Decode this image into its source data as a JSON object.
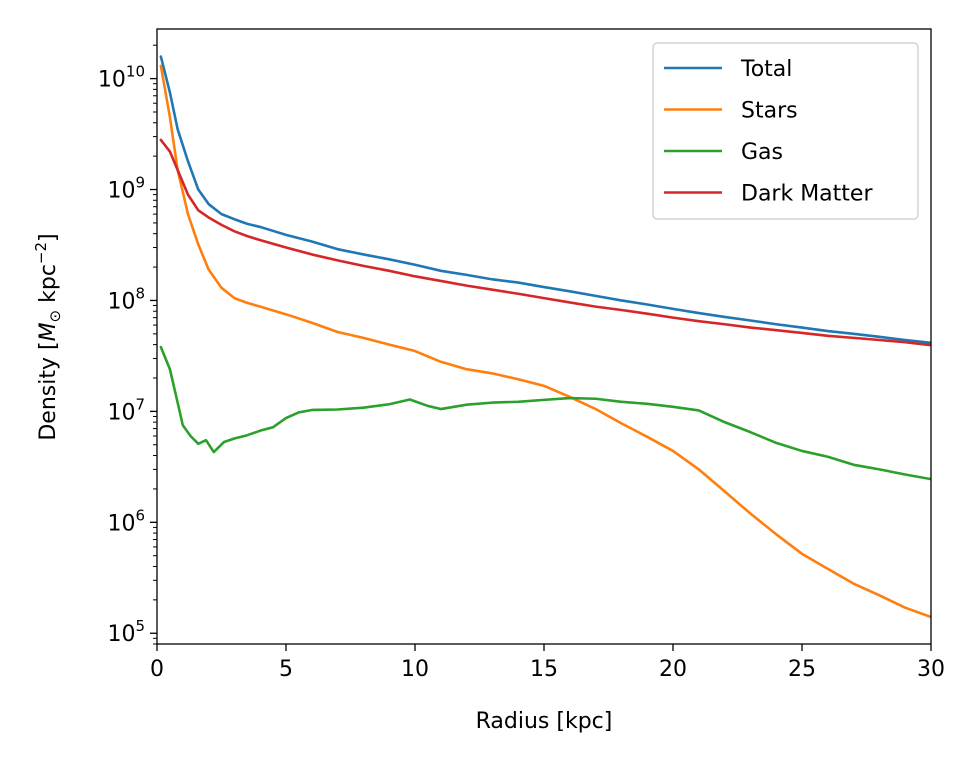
{
  "chart_data": {
    "type": "line",
    "xlabel": "Radius [kpc]",
    "ylabel_parts": [
      "Density [",
      "M",
      "⊙",
      " kpc",
      "−2",
      "]"
    ],
    "xlim": [
      0,
      30
    ],
    "ylim": [
      80000,
      28000000000
    ],
    "yscale": "log",
    "grid": false,
    "legend_position": "top-right",
    "x_ticks": [
      0,
      5,
      10,
      15,
      20,
      25,
      30
    ],
    "x_tick_labels": [
      "0",
      "5",
      "10",
      "15",
      "20",
      "25",
      "30"
    ],
    "y_ticks": [
      100000,
      1000000,
      10000000,
      100000000,
      1000000000,
      10000000000
    ],
    "y_tick_labels": [
      {
        "base": "10",
        "exp": "5"
      },
      {
        "base": "10",
        "exp": "6"
      },
      {
        "base": "10",
        "exp": "7"
      },
      {
        "base": "10",
        "exp": "8"
      },
      {
        "base": "10",
        "exp": "9"
      },
      {
        "base": "10",
        "exp": "10"
      }
    ],
    "series": [
      {
        "name": "Total",
        "color": "#1f77b4",
        "x": [
          0.15,
          0.5,
          0.8,
          1.2,
          1.6,
          2.0,
          2.5,
          3.0,
          3.5,
          4.0,
          5.0,
          6.0,
          7.0,
          8.0,
          9.0,
          10.0,
          11.0,
          12.0,
          13.0,
          14.0,
          15.0,
          16.0,
          17.0,
          18.0,
          19.0,
          20.0,
          21.0,
          22.0,
          23.0,
          24.0,
          25.0,
          26.0,
          27.0,
          28.0,
          29.0,
          30.0
        ],
        "y": [
          15800000000,
          7500000000,
          3500000000,
          1800000000,
          1000000000,
          740000000,
          600000000,
          540000000,
          490000000,
          460000000,
          390000000,
          340000000,
          290000000,
          260000000,
          235000000,
          210000000,
          185000000,
          170000000,
          155000000,
          145000000,
          132000000,
          121000000,
          110000000,
          100000000,
          92000000,
          84000000,
          77000000,
          71000000,
          66000000,
          61000000,
          57000000,
          53000000,
          50000000,
          47000000,
          44000000,
          41500000
        ]
      },
      {
        "name": "Stars",
        "color": "#ff7f0e",
        "x": [
          0.15,
          0.5,
          0.8,
          1.2,
          1.6,
          2.0,
          2.5,
          3.0,
          3.5,
          4.0,
          5.0,
          6.0,
          7.0,
          8.0,
          9.0,
          10.0,
          11.0,
          12.0,
          13.0,
          14.0,
          15.0,
          16.0,
          17.0,
          18.0,
          19.0,
          20.0,
          21.0,
          22.0,
          23.0,
          24.0,
          25.0,
          26.0,
          27.0,
          28.0,
          29.0,
          30.0
        ],
        "y": [
          13000000000,
          4500000000,
          1500000000,
          600000000,
          320000000,
          190000000,
          130000000,
          105000000,
          95000000,
          88000000,
          75000000,
          63000000,
          52000000,
          46000000,
          40000000,
          35000000,
          28000000,
          24000000,
          22000000,
          19500000,
          17000000,
          13500000,
          10500000,
          7800000,
          5900000,
          4400000,
          3000000,
          1900000,
          1200000,
          780000,
          520000,
          380000,
          280000,
          220000,
          170000,
          140000
        ]
      },
      {
        "name": "Gas",
        "color": "#2ca02c",
        "x": [
          0.15,
          0.5,
          0.8,
          1.0,
          1.3,
          1.6,
          1.9,
          2.2,
          2.6,
          3.0,
          3.5,
          4.0,
          4.5,
          5.0,
          5.5,
          6.0,
          7.0,
          8.0,
          9.0,
          9.8,
          10.5,
          11.0,
          12.0,
          13.0,
          14.0,
          15.0,
          16.0,
          17.0,
          18.0,
          19.0,
          20.0,
          21.0,
          22.0,
          23.0,
          24.0,
          25.0,
          26.0,
          27.0,
          28.0,
          29.0,
          30.0
        ],
        "y": [
          38000000,
          24000000,
          12000000,
          7500000,
          6000000,
          5100000,
          5500000,
          4300000,
          5300000,
          5700000,
          6100000,
          6700000,
          7200000,
          8700000,
          9800000,
          10300000,
          10400000,
          10800000,
          11600000,
          12800000,
          11200000,
          10500000,
          11500000,
          12000000,
          12200000,
          12700000,
          13200000,
          13000000,
          12200000,
          11700000,
          11000000,
          10200000,
          8000000,
          6500000,
          5200000,
          4400000,
          3900000,
          3300000,
          3000000,
          2700000,
          2450000
        ]
      },
      {
        "name": "Dark Matter",
        "color": "#d62728",
        "x": [
          0.15,
          0.5,
          0.8,
          1.2,
          1.6,
          2.0,
          2.5,
          3.0,
          3.5,
          4.0,
          5.0,
          6.0,
          7.0,
          8.0,
          9.0,
          10.0,
          11.0,
          12.0,
          13.0,
          14.0,
          15.0,
          16.0,
          17.0,
          18.0,
          19.0,
          20.0,
          21.0,
          22.0,
          23.0,
          24.0,
          25.0,
          26.0,
          27.0,
          28.0,
          29.0,
          30.0
        ],
        "y": [
          2800000000,
          2200000000,
          1500000000,
          900000000,
          650000000,
          560000000,
          480000000,
          420000000,
          380000000,
          350000000,
          300000000,
          260000000,
          230000000,
          205000000,
          185000000,
          165000000,
          150000000,
          136000000,
          125000000,
          115000000,
          105000000,
          96000000,
          88000000,
          82000000,
          76000000,
          70000000,
          65000000,
          61000000,
          57000000,
          54000000,
          51000000,
          48000000,
          46000000,
          44000000,
          42000000,
          39500000
        ]
      }
    ]
  }
}
